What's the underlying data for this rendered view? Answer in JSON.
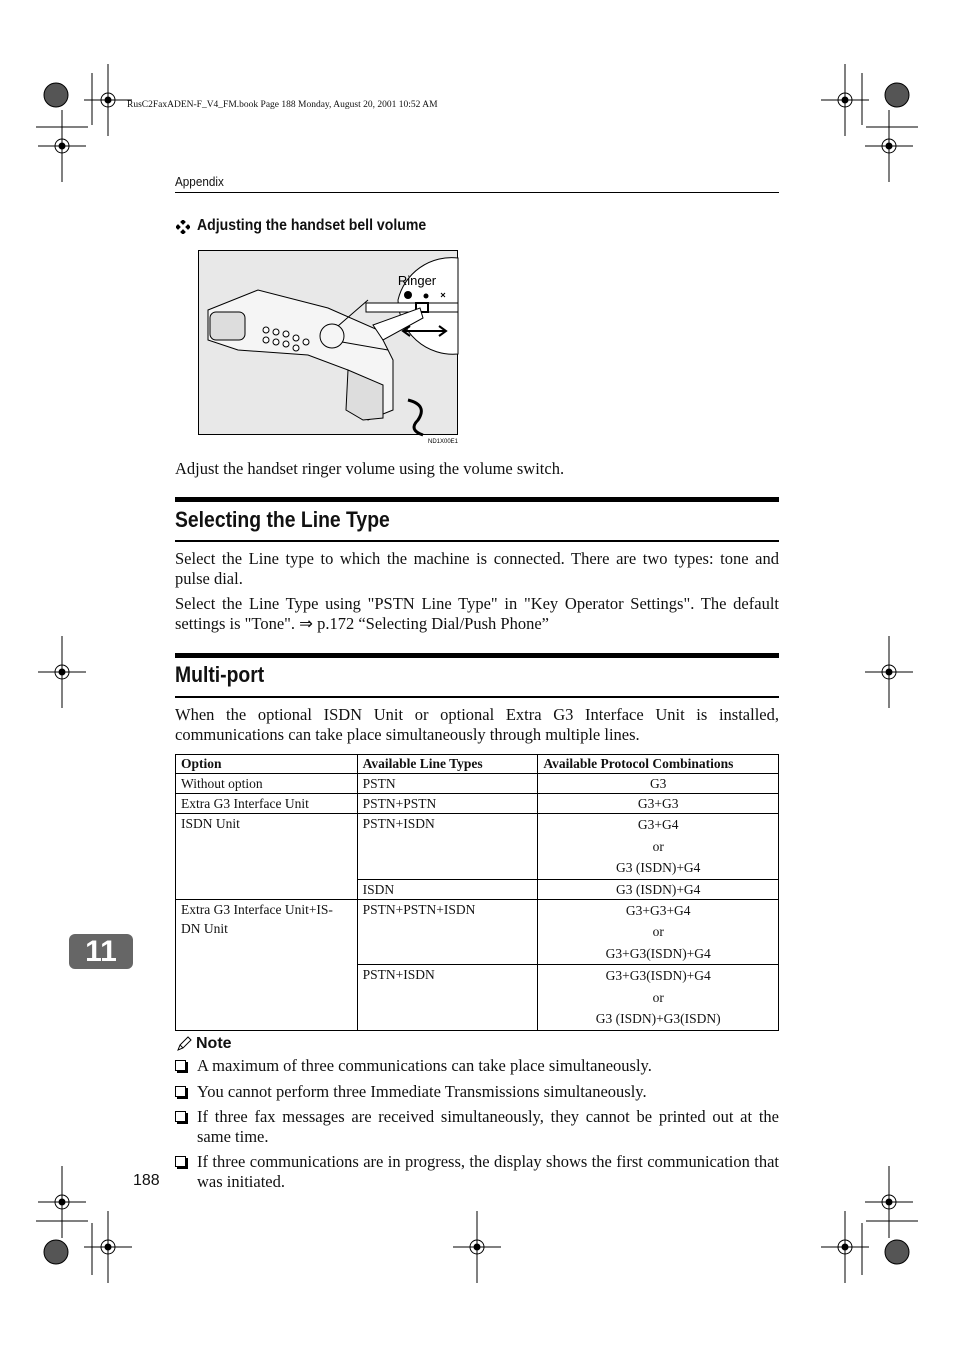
{
  "print_header": "RusC2FaxADEN-F_V4_FM.book  Page 188  Monday, August 20, 2001  10:52 AM",
  "running_header": "Appendix",
  "subsection": {
    "title": "Adjusting the handset bell volume",
    "text": "Adjust the handset ringer volume using the volume switch."
  },
  "figure": {
    "label": "Ringer",
    "code": "ND1X00E1"
  },
  "sections": [
    {
      "title": "Selecting the Line Type",
      "paragraphs": [
        "Select the Line type to which the machine is connected. There are two types: tone and pulse dial.",
        "Select the Line Type using \"PSTN Line Type\" in \"Key Operator Settings\". The default settings is \"Tone\". ⇒ p.172 “Selecting Dial/Push Phone”"
      ]
    },
    {
      "title": "Multi-port",
      "paragraphs": [
        "When the optional ISDN Unit or optional Extra G3 Interface Unit is installed, communications can take place simultaneously through multiple lines."
      ]
    }
  ],
  "table": {
    "header": [
      "Option",
      "Available Line Types",
      "Available Protocol Combinations"
    ],
    "groups": [
      {
        "option": "Without option",
        "lines": [
          {
            "type": "PSTN",
            "combos": [
              "G3"
            ]
          }
        ]
      },
      {
        "option": "Extra G3 Interface Unit",
        "lines": [
          {
            "type": "PSTN+PSTN",
            "combos": [
              "G3+G3"
            ]
          }
        ]
      },
      {
        "option": "ISDN Unit",
        "lines": [
          {
            "type": "PSTN+ISDN",
            "combos": [
              "G3+G4",
              "or",
              "G3 (ISDN)+G4"
            ]
          },
          {
            "type": "ISDN",
            "combos": [
              "G3 (ISDN)+G4"
            ]
          }
        ]
      },
      {
        "option": "Extra G3 Interface Unit+IS-DN Unit",
        "lines": [
          {
            "type": "PSTN+PSTN+ISDN",
            "combos": [
              "G3+G3+G4",
              "or",
              "G3+G3(ISDN)+G4"
            ]
          },
          {
            "type": "PSTN+ISDN",
            "combos": [
              "G3+G3(ISDN)+G4",
              "or",
              "G3 (ISDN)+G3(ISDN)"
            ]
          }
        ]
      }
    ]
  },
  "note": {
    "title": "Note",
    "items": [
      "A maximum of three communications can take place simultaneously.",
      "You cannot perform three Immediate Transmissions simultaneously.",
      "If three fax messages are received simultaneously, they cannot be printed out at the same time.",
      "If three communications are in progress, the display shows the first communication that was initiated."
    ]
  },
  "chapter_tab": "11",
  "page_number": "188"
}
